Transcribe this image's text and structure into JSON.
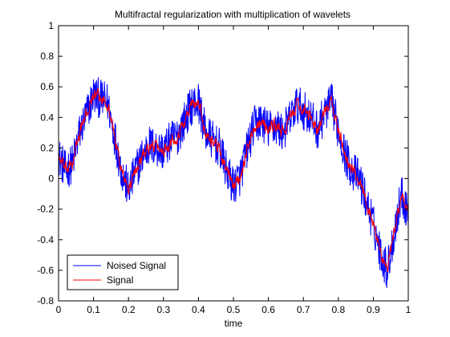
{
  "chart_data": {
    "type": "line",
    "title": "Multifractal regularization with multiplication of wavelets",
    "xlabel": "time",
    "ylabel": "",
    "xlim": [
      0,
      1
    ],
    "ylim": [
      -0.8,
      1
    ],
    "grid": false,
    "legend_position": "bottom-left",
    "x_ticks": [
      "0",
      "0.1",
      "0.2",
      "0.3",
      "0.4",
      "0.5",
      "0.6",
      "0.7",
      "0.8",
      "0.9",
      "1"
    ],
    "y_ticks": [
      "-0.8",
      "-0.6",
      "-0.4",
      "-0.2",
      "0",
      "0.2",
      "0.4",
      "0.6",
      "0.8",
      "1"
    ],
    "x_tick_values": [
      0,
      0.1,
      0.2,
      0.3,
      0.4,
      0.5,
      0.6,
      0.7,
      0.8,
      0.9,
      1
    ],
    "y_tick_values": [
      -0.8,
      -0.6,
      -0.4,
      -0.2,
      0,
      0.2,
      0.4,
      0.6,
      0.8,
      1
    ],
    "series": [
      {
        "name": "Noised Signal",
        "color": "#0000ff",
        "noise_amplitude": 0.13,
        "x": [
          0,
          0.02,
          0.04,
          0.06,
          0.08,
          0.1,
          0.12,
          0.14,
          0.16,
          0.18,
          0.2,
          0.22,
          0.24,
          0.26,
          0.28,
          0.3,
          0.32,
          0.34,
          0.36,
          0.38,
          0.4,
          0.42,
          0.44,
          0.46,
          0.48,
          0.5,
          0.52,
          0.54,
          0.56,
          0.58,
          0.6,
          0.62,
          0.64,
          0.66,
          0.68,
          0.7,
          0.72,
          0.74,
          0.76,
          0.78,
          0.8,
          0.82,
          0.84,
          0.86,
          0.88,
          0.9,
          0.92,
          0.94,
          0.96,
          0.98,
          1
        ],
        "y": [
          0.15,
          0.05,
          0.1,
          0.3,
          0.42,
          0.55,
          0.52,
          0.5,
          0.28,
          0.05,
          -0.08,
          0.05,
          0.15,
          0.22,
          0.2,
          0.18,
          0.25,
          0.28,
          0.38,
          0.48,
          0.5,
          0.3,
          0.25,
          0.2,
          0.05,
          -0.05,
          0.02,
          0.2,
          0.35,
          0.38,
          0.32,
          0.35,
          0.3,
          0.38,
          0.48,
          0.45,
          0.4,
          0.32,
          0.42,
          0.5,
          0.32,
          0.15,
          0.05,
          0.0,
          -0.15,
          -0.3,
          -0.48,
          -0.6,
          -0.35,
          -0.1,
          -0.22
        ]
      },
      {
        "name": "Signal",
        "color": "#ff0000",
        "noise_amplitude": 0.04,
        "x": [
          0,
          0.02,
          0.04,
          0.06,
          0.08,
          0.1,
          0.12,
          0.14,
          0.16,
          0.18,
          0.2,
          0.22,
          0.24,
          0.26,
          0.28,
          0.3,
          0.32,
          0.34,
          0.36,
          0.38,
          0.4,
          0.42,
          0.44,
          0.46,
          0.48,
          0.5,
          0.52,
          0.54,
          0.56,
          0.58,
          0.6,
          0.62,
          0.64,
          0.66,
          0.68,
          0.7,
          0.72,
          0.74,
          0.76,
          0.78,
          0.8,
          0.82,
          0.84,
          0.86,
          0.88,
          0.9,
          0.92,
          0.94,
          0.96,
          0.98,
          1
        ],
        "y": [
          0.15,
          0.05,
          0.1,
          0.3,
          0.42,
          0.55,
          0.52,
          0.5,
          0.28,
          0.05,
          -0.08,
          0.05,
          0.15,
          0.22,
          0.2,
          0.18,
          0.25,
          0.28,
          0.38,
          0.48,
          0.5,
          0.3,
          0.25,
          0.2,
          0.05,
          -0.05,
          0.02,
          0.2,
          0.35,
          0.38,
          0.32,
          0.35,
          0.3,
          0.38,
          0.48,
          0.45,
          0.4,
          0.32,
          0.42,
          0.5,
          0.32,
          0.15,
          0.05,
          0.0,
          -0.15,
          -0.3,
          -0.48,
          -0.6,
          -0.35,
          -0.1,
          -0.22
        ]
      }
    ]
  }
}
